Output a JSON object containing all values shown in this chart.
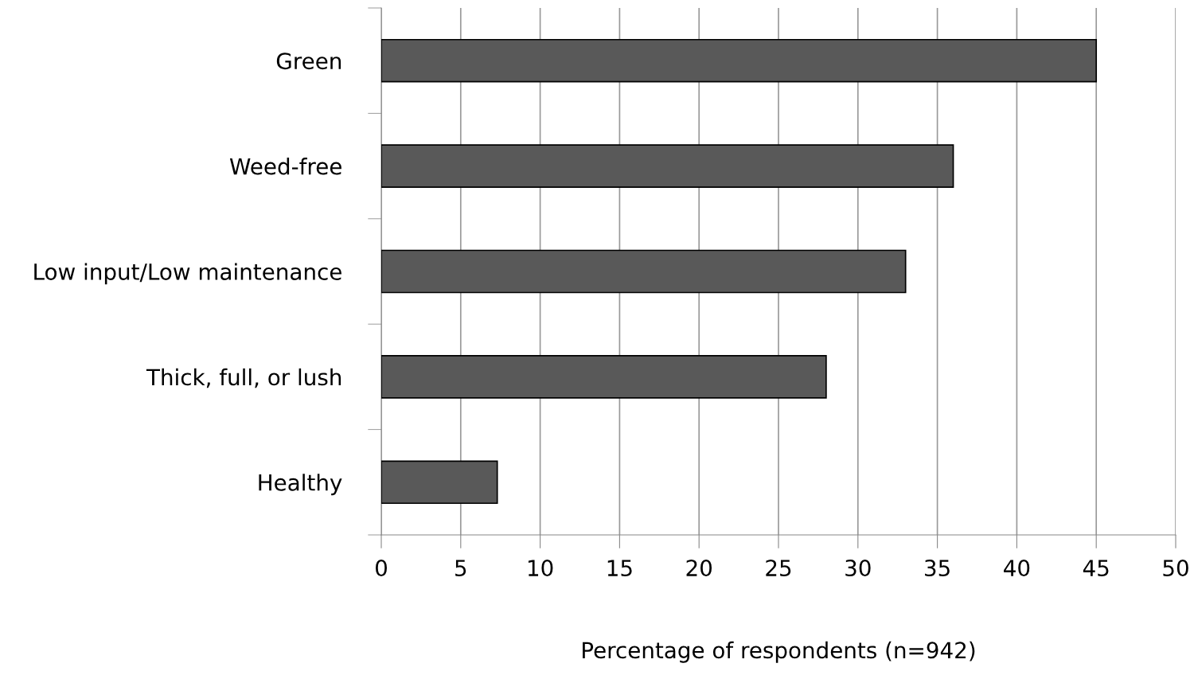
{
  "chart_data": {
    "type": "bar",
    "orientation": "horizontal",
    "categories": [
      "Green",
      "Weed-free",
      "Low input/Low maintenance",
      "Thick, full, or lush",
      "Healthy"
    ],
    "values": [
      45,
      36,
      33,
      28,
      7.3
    ],
    "color": "#595959",
    "xlabel": "Percentage of respondents (n=942)",
    "xlim": [
      0,
      50
    ],
    "xticks": [
      0,
      5,
      10,
      15,
      20,
      25,
      30,
      35,
      40,
      45,
      50
    ],
    "grid": "x",
    "legend": false
  }
}
